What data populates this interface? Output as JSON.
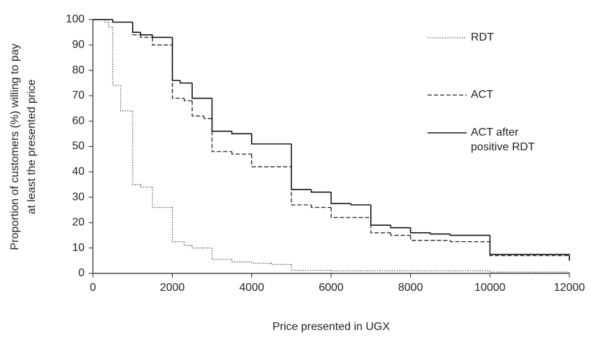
{
  "chart_data": {
    "type": "line",
    "drawstyle": "steps-post",
    "xlabel": "Price presented in UGX",
    "ylabel": [
      "Proportion of customers (%) willing to pay",
      "at least the presented price"
    ],
    "xlim": [
      0,
      12000
    ],
    "xticks": [
      0,
      2000,
      4000,
      6000,
      8000,
      10000,
      12000
    ],
    "ylim": [
      0,
      100
    ],
    "yticks": [
      0,
      10,
      20,
      30,
      40,
      50,
      60,
      70,
      80,
      90,
      100
    ],
    "grid": false,
    "series": [
      {
        "name": "RDT",
        "color": "#555555",
        "linestyle": "dotted",
        "x": [
          0,
          300,
          400,
          500,
          700,
          1000,
          1200,
          1500,
          2000,
          2300,
          2500,
          3000,
          3500,
          4000,
          4500,
          5000,
          6000,
          10000,
          12000
        ],
        "values": [
          100,
          99,
          97,
          74,
          64,
          35,
          34,
          26,
          12.5,
          11,
          10,
          5.5,
          4.5,
          4,
          3.5,
          1.2,
          1,
          0.5,
          0
        ]
      },
      {
        "name": "ACT",
        "color": "#222222",
        "linestyle": "dashed",
        "x": [
          0,
          500,
          1000,
          1200,
          1500,
          2000,
          2300,
          2500,
          2800,
          3000,
          3500,
          4000,
          5000,
          5500,
          6000,
          7000,
          7500,
          8000,
          9000,
          10000,
          12000
        ],
        "values": [
          100,
          99,
          94,
          93,
          90,
          69,
          68,
          62,
          61,
          48,
          47,
          42,
          27,
          26,
          22,
          16,
          15,
          13,
          12.5,
          7,
          5
        ]
      },
      {
        "name": "ACT after positive RDT",
        "color": "#111111",
        "linestyle": "solid",
        "x": [
          0,
          500,
          1000,
          1200,
          1500,
          2000,
          2200,
          2500,
          3000,
          3500,
          4000,
          5000,
          5500,
          6000,
          6500,
          7000,
          7500,
          8000,
          8500,
          9000,
          10000,
          12000
        ],
        "values": [
          100,
          99,
          95,
          94,
          93,
          76,
          75,
          69,
          56,
          55,
          51,
          33,
          32,
          27.5,
          27,
          19,
          18,
          16,
          15.5,
          15,
          7.5,
          5
        ]
      }
    ]
  }
}
